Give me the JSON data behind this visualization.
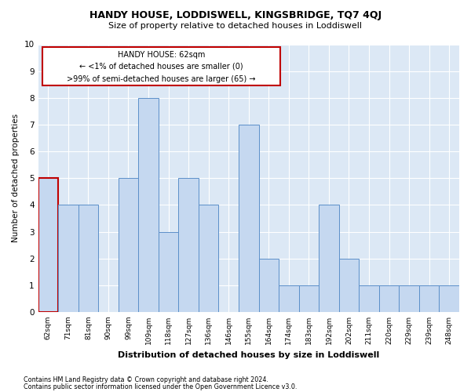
{
  "title": "HANDY HOUSE, LODDISWELL, KINGSBRIDGE, TQ7 4QJ",
  "subtitle": "Size of property relative to detached houses in Loddiswell",
  "xlabel": "Distribution of detached houses by size in Loddiswell",
  "ylabel": "Number of detached properties",
  "categories": [
    "62sqm",
    "71sqm",
    "81sqm",
    "90sqm",
    "99sqm",
    "109sqm",
    "118sqm",
    "127sqm",
    "136sqm",
    "146sqm",
    "155sqm",
    "164sqm",
    "174sqm",
    "183sqm",
    "192sqm",
    "202sqm",
    "211sqm",
    "220sqm",
    "229sqm",
    "239sqm",
    "248sqm"
  ],
  "values": [
    5,
    4,
    4,
    0,
    5,
    8,
    3,
    5,
    4,
    0,
    7,
    2,
    1,
    1,
    4,
    2,
    1,
    1,
    1,
    1,
    1
  ],
  "highlight_index": 0,
  "bar_color": "#c5d8f0",
  "bar_edge_color": "#5b8fc9",
  "highlight_bar_edge_color": "#c00000",
  "annotation_box_edge_color": "#c00000",
  "annotation_text_line1": "HANDY HOUSE: 62sqm",
  "annotation_text_line2": "← <1% of detached houses are smaller (0)",
  "annotation_text_line3": ">99% of semi-detached houses are larger (65) →",
  "ylim": [
    0,
    10
  ],
  "yticks": [
    0,
    1,
    2,
    3,
    4,
    5,
    6,
    7,
    8,
    9,
    10
  ],
  "bg_color": "#dce8f5",
  "footer_line1": "Contains HM Land Registry data © Crown copyright and database right 2024.",
  "footer_line2": "Contains public sector information licensed under the Open Government Licence v3.0."
}
